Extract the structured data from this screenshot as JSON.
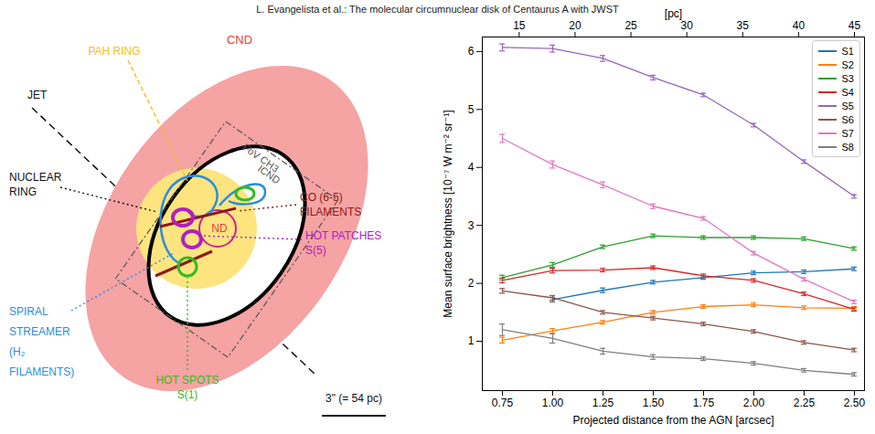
{
  "header": "L. Evangelista et al.: The molecular circumnuclear disk of Centaurus A with JWST",
  "diagram": {
    "labels": {
      "cnd": {
        "lines": [
          "CND"
        ],
        "color": "#e8403a"
      },
      "pah": {
        "lines": [
          "PAH RING"
        ],
        "color": "#f0c020"
      },
      "jet": {
        "lines": [
          "JET"
        ],
        "color": "#111111"
      },
      "nuclear": {
        "lines": [
          "NUCLEAR",
          "RING"
        ],
        "color": "#111111"
      },
      "fov": {
        "lines": [
          "FoV CH3"
        ],
        "color": "#555555"
      },
      "icnd": {
        "lines": [
          "ICND"
        ],
        "color": "#555555"
      },
      "co": {
        "lines": [
          "CO (6-5)",
          "FILAMENTS"
        ],
        "color": "#8b1a1a"
      },
      "nd": {
        "lines": [
          "ND"
        ],
        "color": "#e8403a"
      },
      "patches": {
        "lines": [
          "HOT PATCHES",
          "S(5)"
        ],
        "color": "#b020c0"
      },
      "spiral": {
        "lines": [
          "SPIRAL",
          "STREAMER",
          "(H₂",
          "FILAMENTS)"
        ],
        "color": "#2a8de0"
      },
      "spots": {
        "lines": [
          "HOT SPOTS",
          "S(1)"
        ],
        "color": "#33bb22"
      },
      "scale": {
        "lines": [
          "3\" (= 54 pc)"
        ],
        "color": "#111111"
      }
    }
  },
  "chart_data": {
    "type": "line",
    "xlabel": "Projected distance from the AGN [arcsec]",
    "ylabel": "Mean surface brightness [10⁻⁷ W m⁻² sr⁻¹]",
    "x2label": "[pc]",
    "x": [
      0.75,
      1.0,
      1.25,
      1.5,
      1.75,
      2.0,
      2.25,
      2.5
    ],
    "xlim": [
      0.65,
      2.55
    ],
    "xticks": [
      {
        "value": 0.75,
        "label": "0.75"
      },
      {
        "value": 1.0,
        "label": "1.00"
      },
      {
        "value": 1.25,
        "label": "1.25"
      },
      {
        "value": 1.5,
        "label": "1.50"
      },
      {
        "value": 1.75,
        "label": "1.75"
      },
      {
        "value": 2.0,
        "label": "2.00"
      },
      {
        "value": 2.25,
        "label": "2.25"
      },
      {
        "value": 2.5,
        "label": "2.50"
      }
    ],
    "x2lim": [
      11.7,
      45.9
    ],
    "x2ticks": [
      15,
      20,
      25,
      30,
      35,
      40,
      45
    ],
    "ylim": [
      0.15,
      6.25
    ],
    "yticks": [
      1,
      2,
      3,
      4,
      5,
      6
    ],
    "grid": false,
    "legend": "upper right",
    "series": [
      {
        "name": "S1",
        "color": "#1f77b4",
        "values": [
          null,
          1.72,
          1.88,
          2.02,
          2.1,
          2.18,
          2.2,
          2.25
        ],
        "errors": [
          null,
          0.04,
          0.04,
          0.03,
          0.03,
          0.03,
          0.03,
          0.03
        ]
      },
      {
        "name": "S2",
        "color": "#ff7f0e",
        "values": [
          1.02,
          1.18,
          1.33,
          1.5,
          1.6,
          1.63,
          1.58,
          1.57
        ],
        "errors": [
          0.05,
          0.04,
          0.03,
          0.03,
          0.03,
          0.03,
          0.03,
          0.03
        ]
      },
      {
        "name": "S3",
        "color": "#2ca02c",
        "values": [
          2.1,
          2.32,
          2.63,
          2.82,
          2.79,
          2.79,
          2.77,
          2.6
        ],
        "errors": [
          0.04,
          0.04,
          0.03,
          0.03,
          0.03,
          0.03,
          0.03,
          0.03
        ]
      },
      {
        "name": "S4",
        "color": "#d62728",
        "values": [
          2.05,
          2.22,
          2.23,
          2.27,
          2.13,
          2.05,
          1.82,
          1.55
        ],
        "errors": [
          0.04,
          0.04,
          0.03,
          0.03,
          0.03,
          0.03,
          0.03,
          0.03
        ]
      },
      {
        "name": "S5",
        "color": "#9467bd",
        "values": [
          6.07,
          6.05,
          5.88,
          5.55,
          5.25,
          4.73,
          4.1,
          3.5
        ],
        "errors": [
          0.06,
          0.06,
          0.05,
          0.04,
          0.03,
          0.03,
          0.03,
          0.03
        ]
      },
      {
        "name": "S6",
        "color": "#8c564b",
        "values": [
          1.87,
          1.75,
          1.5,
          1.4,
          1.3,
          1.17,
          0.98,
          0.85
        ],
        "errors": [
          0.04,
          0.04,
          0.03,
          0.03,
          0.03,
          0.03,
          0.03,
          0.03
        ]
      },
      {
        "name": "S7",
        "color": "#e377c2",
        "values": [
          4.5,
          4.05,
          3.7,
          3.33,
          3.12,
          2.52,
          2.07,
          1.68
        ],
        "errors": [
          0.07,
          0.06,
          0.05,
          0.04,
          0.03,
          0.03,
          0.03,
          0.03
        ]
      },
      {
        "name": "S8",
        "color": "#7f7f7f",
        "values": [
          1.2,
          1.05,
          0.83,
          0.73,
          0.7,
          0.62,
          0.5,
          0.43
        ],
        "errors": [
          0.1,
          0.08,
          0.05,
          0.04,
          0.03,
          0.03,
          0.03,
          0.03
        ]
      }
    ]
  }
}
